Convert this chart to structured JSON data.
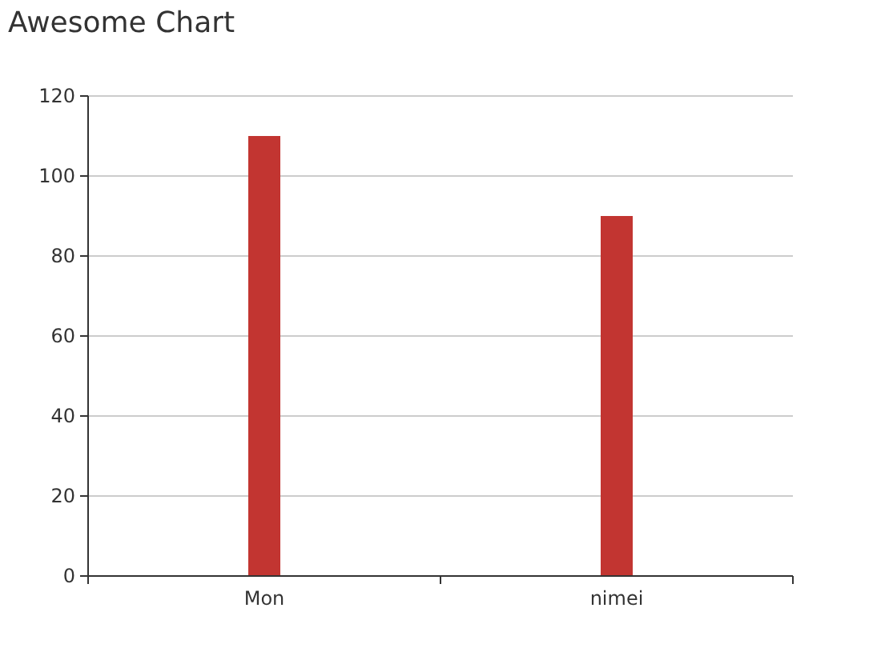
{
  "chart_data": {
    "type": "bar",
    "title": "Awesome Chart",
    "categories": [
      "Mon",
      "nimei"
    ],
    "values": [
      110,
      90
    ],
    "color": "#c23531",
    "ylim": [
      0,
      120
    ],
    "yticks": [
      0,
      20,
      40,
      60,
      80,
      100,
      120
    ],
    "grid": "y"
  }
}
